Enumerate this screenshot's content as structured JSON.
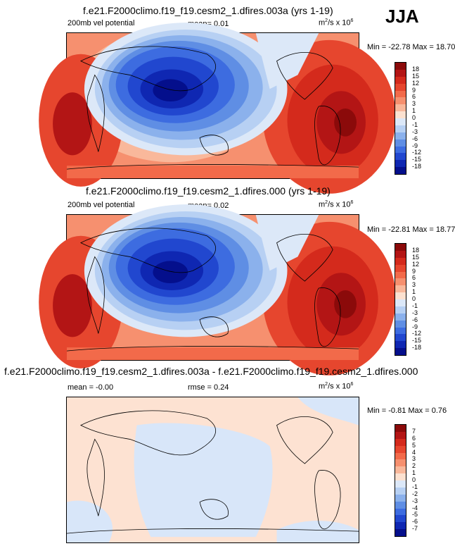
{
  "season": "JJA",
  "panels": [
    {
      "title": "f.e21.F2000climo.f19_f19.cesm2_1.dfires.003a (yrs 1-19)",
      "left_label": "200mb vel potential",
      "center_label": "mean=  0.01",
      "units": "m",
      "units_sup": "2",
      "units_tail": "/s x 10",
      "units_exp": "6",
      "minmax": "Min = -22.78 Max = 18.70",
      "colorbar_labels": [
        "18",
        "15",
        "12",
        "9",
        "6",
        "3",
        "1",
        "0",
        "-1",
        "-3",
        "-6",
        "-9",
        "-12",
        "-15",
        "-18"
      ]
    },
    {
      "title": "f.e21.F2000climo.f19_f19.cesm2_1.dfires.000 (yrs 1-19)",
      "left_label": "200mb vel potential",
      "center_label": "mean=  0.02",
      "units": "m",
      "units_sup": "2",
      "units_tail": "/s x 10",
      "units_exp": "6",
      "minmax": "Min = -22.81 Max = 18.77",
      "colorbar_labels": [
        "18",
        "15",
        "12",
        "9",
        "6",
        "3",
        "1",
        "0",
        "-1",
        "-3",
        "-6",
        "-9",
        "-12",
        "-15",
        "-18"
      ]
    },
    {
      "title": "f.e21.F2000climo.f19_f19.cesm2_1.dfires.003a - f.e21.F2000climo.f19_f19.cesm2_1.dfires.000",
      "left_label": "mean = -0.00",
      "center_label": "rmse =  0.24",
      "units": "m",
      "units_sup": "2",
      "units_tail": "/s x 10",
      "units_exp": "6",
      "minmax": "Min = -0.81 Max =  0.76",
      "colorbar_labels": [
        "7",
        "6",
        "5",
        "4",
        "3",
        "2",
        "1",
        "0",
        "-1",
        "-2",
        "-3",
        "-4",
        "-5",
        "-6",
        "-7"
      ]
    }
  ],
  "colors": {
    "scale": [
      "#8b0a0a",
      "#b31515",
      "#d42a1c",
      "#e6462e",
      "#f26a4a",
      "#f6906f",
      "#f9b89b",
      "#fce1d0",
      "#dce8f8",
      "#b7d0f3",
      "#8bb1ec",
      "#5f8ee4",
      "#3d6ce0",
      "#2147cf",
      "#0f27b2",
      "#040f8c"
    ],
    "ocean_positive": "#f6b394",
    "ocean_negative": "#3d6ce0",
    "diff_positive": "#fde2d2",
    "diff_negative": "#d8e6f9"
  }
}
